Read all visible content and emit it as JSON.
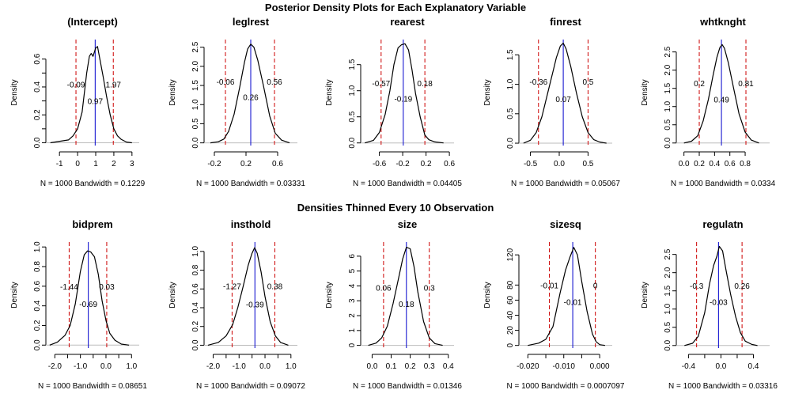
{
  "figure": {
    "top_title": "Posterior Density Plots for Each Explanatory Variable",
    "middle_title": "Densities Thinned Every 10 Observation"
  },
  "chart_data": [
    {
      "type": "line",
      "title": "(Intercept)",
      "xlabel": "N = 1000   Bandwidth = 0.1229",
      "ylabel": "Density",
      "xlim": [
        -1.75,
        3.4
      ],
      "ylim": [
        -0.02,
        0.74
      ],
      "xticks": [
        -1,
        0,
        1,
        2,
        3
      ],
      "xtick_labels": [
        "-1",
        "0",
        "1",
        "2",
        "3"
      ],
      "yticks": [
        0,
        0.1,
        0.2,
        0.3,
        0.4,
        0.5,
        0.6
      ],
      "ytick_labels": [
        "0.0",
        "",
        "0.2",
        "",
        "0.4",
        "",
        "0.6"
      ],
      "lower": -0.09,
      "median": 0.97,
      "upper": 1.97,
      "lower_label": "-0.09",
      "median_label": "0.97",
      "upper_label": "1.97",
      "label_y": [
        0.42,
        0.3
      ],
      "x": [
        -1.5,
        -0.5,
        -0.25,
        0,
        0.25,
        0.5,
        0.65,
        0.75,
        0.85,
        1.0,
        1.1,
        1.2,
        1.4,
        1.6,
        1.8,
        2.0,
        2.2,
        2.4,
        2.7,
        3.0
      ],
      "y": [
        0.0,
        0.02,
        0.05,
        0.1,
        0.22,
        0.5,
        0.62,
        0.64,
        0.62,
        0.68,
        0.69,
        0.62,
        0.48,
        0.33,
        0.2,
        0.1,
        0.05,
        0.025,
        0.005,
        0.0
      ]
    },
    {
      "type": "line",
      "title": "leglrest",
      "xlabel": "N = 1000   Bandwidth = 0.03331",
      "ylabel": "Density",
      "xlim": [
        -0.33,
        0.85
      ],
      "ylim": [
        -0.07,
        2.7
      ],
      "xticks": [
        -0.2,
        0.2,
        0.6
      ],
      "xtick_labels": [
        "-0.2",
        "0.2",
        "0.6"
      ],
      "yticks": [
        0,
        0.5,
        1,
        1.5,
        2,
        2.5
      ],
      "ytick_labels": [
        "0.0",
        "0.5",
        "1.0",
        "1.5",
        "2.0",
        "2.5"
      ],
      "lower": -0.06,
      "median": 0.26,
      "upper": 0.56,
      "lower_label": "-0.06",
      "median_label": "0.26",
      "upper_label": "0.56",
      "label_y": [
        1.6,
        1.2
      ],
      "x": [
        -0.25,
        -0.15,
        -0.08,
        -0.02,
        0.05,
        0.12,
        0.18,
        0.22,
        0.26,
        0.3,
        0.35,
        0.42,
        0.5,
        0.57,
        0.65,
        0.75
      ],
      "y": [
        0.0,
        0.03,
        0.1,
        0.3,
        0.75,
        1.45,
        2.1,
        2.45,
        2.58,
        2.5,
        2.15,
        1.5,
        0.7,
        0.25,
        0.07,
        0.0
      ]
    },
    {
      "type": "line",
      "title": "rearest",
      "xlabel": "N = 1000   Bandwidth = 0.04405",
      "ylabel": "Density",
      "xlim": [
        -0.92,
        0.68
      ],
      "ylim": [
        -0.05,
        1.98
      ],
      "xticks": [
        -0.6,
        -0.2,
        0.2,
        0.6
      ],
      "xtick_labels": [
        "-0.6",
        "-0.2",
        "0.2",
        "0.6"
      ],
      "yticks": [
        0,
        0.5,
        1,
        1.5
      ],
      "ytick_labels": [
        "0.0",
        "0.5",
        "1.0",
        "1.5"
      ],
      "lower": -0.57,
      "median": -0.19,
      "upper": 0.18,
      "lower_label": "-0.57",
      "median_label": "-0.19",
      "upper_label": "0.18",
      "label_y": [
        1.15,
        0.85
      ],
      "x": [
        -0.85,
        -0.7,
        -0.6,
        -0.5,
        -0.42,
        -0.35,
        -0.28,
        -0.22,
        -0.16,
        -0.1,
        -0.04,
        0.02,
        0.1,
        0.18,
        0.25,
        0.35,
        0.5
      ],
      "y": [
        0.0,
        0.05,
        0.2,
        0.55,
        1.0,
        1.5,
        1.82,
        1.88,
        1.9,
        1.78,
        1.4,
        0.95,
        0.5,
        0.15,
        0.06,
        0.02,
        0.0
      ]
    },
    {
      "type": "line",
      "title": "finrest",
      "xlabel": "N = 1000   Bandwidth = 0.05067",
      "ylabel": "Density",
      "xlim": [
        -0.7,
        0.92
      ],
      "ylim": [
        -0.04,
        1.76
      ],
      "xticks": [
        -0.5,
        0,
        0.5
      ],
      "xtick_labels": [
        "-0.5",
        "0.0",
        "0.5"
      ],
      "yticks": [
        0,
        0.5,
        1,
        1.5
      ],
      "ytick_labels": [
        "0.0",
        "0.5",
        "1.0",
        "1.5"
      ],
      "lower": -0.36,
      "median": 0.07,
      "upper": 0.5,
      "lower_label": "-0.36",
      "median_label": "0.07",
      "upper_label": "0.5",
      "label_y": [
        1.05,
        0.75
      ],
      "x": [
        -0.62,
        -0.5,
        -0.4,
        -0.3,
        -0.2,
        -0.1,
        -0.05,
        0.02,
        0.07,
        0.12,
        0.2,
        0.3,
        0.4,
        0.5,
        0.6,
        0.7,
        0.82
      ],
      "y": [
        0.0,
        0.05,
        0.18,
        0.45,
        0.85,
        1.25,
        1.45,
        1.65,
        1.7,
        1.6,
        1.3,
        0.85,
        0.45,
        0.18,
        0.06,
        0.02,
        0.0
      ]
    },
    {
      "type": "line",
      "title": "whtknght",
      "xlabel": "N = 1000   Bandwidth = 0.0334",
      "ylabel": "Density",
      "xlim": [
        -0.1,
        1.12
      ],
      "ylim": [
        -0.07,
        2.84
      ],
      "xticks": [
        0,
        0.2,
        0.4,
        0.6,
        0.8
      ],
      "xtick_labels": [
        "0.0",
        "0.2",
        "0.4",
        "0.6",
        "0.8"
      ],
      "yticks": [
        0,
        0.5,
        1,
        1.5,
        2,
        2.5
      ],
      "ytick_labels": [
        "0.0",
        "0.5",
        "1.0",
        "1.5",
        "2.0",
        "2.5"
      ],
      "lower": 0.2,
      "median": 0.49,
      "upper": 0.81,
      "lower_label": "0.2",
      "median_label": "0.49",
      "upper_label": "0.81",
      "label_y": [
        1.65,
        1.2
      ],
      "x": [
        0.0,
        0.1,
        0.18,
        0.25,
        0.32,
        0.38,
        0.43,
        0.47,
        0.5,
        0.53,
        0.58,
        0.65,
        0.72,
        0.8,
        0.88,
        0.98
      ],
      "y": [
        0.0,
        0.05,
        0.2,
        0.6,
        1.2,
        1.85,
        2.35,
        2.62,
        2.7,
        2.6,
        2.2,
        1.5,
        0.8,
        0.3,
        0.08,
        0.0
      ]
    },
    {
      "type": "line",
      "title": "bidprem",
      "xlabel": "N = 1000   Bandwidth = 0.08651",
      "ylabel": "Density",
      "xlim": [
        -2.35,
        1.3
      ],
      "ylim": [
        -0.03,
        1.05
      ],
      "xticks": [
        -2,
        -1.5,
        -1,
        -0.5,
        0,
        0.5,
        1
      ],
      "xtick_labels": [
        "-2.0",
        "",
        "-1.0",
        "",
        "0.0",
        "",
        "1.0"
      ],
      "yticks": [
        0,
        0.2,
        0.4,
        0.6,
        0.8,
        1.0
      ],
      "ytick_labels": [
        "0.0",
        "0.2",
        "0.4",
        "0.6",
        "0.8",
        "1.0"
      ],
      "lower": -1.44,
      "median": -0.69,
      "upper": 0.03,
      "lower_label": "-1.44",
      "median_label": "-0.69",
      "upper_label": "0.03",
      "label_y": [
        0.6,
        0.42
      ],
      "x": [
        -2.2,
        -1.9,
        -1.6,
        -1.4,
        -1.2,
        -1.0,
        -0.85,
        -0.72,
        -0.6,
        -0.45,
        -0.3,
        -0.15,
        0.0,
        0.15,
        0.35,
        0.6,
        0.9
      ],
      "y": [
        0.0,
        0.03,
        0.1,
        0.2,
        0.42,
        0.75,
        0.92,
        0.96,
        0.95,
        0.9,
        0.72,
        0.45,
        0.25,
        0.12,
        0.05,
        0.01,
        0.0
      ]
    },
    {
      "type": "line",
      "title": "insthold",
      "xlabel": "N = 1000   Bandwidth = 0.09072",
      "ylabel": "Density",
      "xlim": [
        -2.35,
        1.25
      ],
      "ylim": [
        -0.03,
        1.1
      ],
      "xticks": [
        -2,
        -1.5,
        -1,
        -0.5,
        0,
        0.5,
        1
      ],
      "xtick_labels": [
        "-2.0",
        "",
        "-1.0",
        "",
        "0.0",
        "",
        "1.0"
      ],
      "yticks": [
        0,
        0.2,
        0.4,
        0.6,
        0.8,
        1.0
      ],
      "ytick_labels": [
        "0.0",
        "0.2",
        "0.4",
        "0.6",
        "0.8",
        "1.0"
      ],
      "lower": -1.27,
      "median": -0.39,
      "upper": 0.38,
      "lower_label": "-1.27",
      "median_label": "-0.39",
      "upper_label": "0.38",
      "label_y": [
        0.63,
        0.44
      ],
      "x": [
        -2.2,
        -1.8,
        -1.5,
        -1.25,
        -1.05,
        -0.85,
        -0.65,
        -0.5,
        -0.4,
        -0.3,
        -0.15,
        0.0,
        0.2,
        0.4,
        0.6,
        0.9
      ],
      "y": [
        0.0,
        0.03,
        0.1,
        0.22,
        0.4,
        0.62,
        0.85,
        0.98,
        1.04,
        0.98,
        0.78,
        0.52,
        0.25,
        0.1,
        0.03,
        0.0
      ]
    },
    {
      "type": "line",
      "title": "size",
      "xlabel": "N = 1000   Bandwidth = 0.01346",
      "ylabel": "Density",
      "xlim": [
        -0.06,
        0.43
      ],
      "ylim": [
        -0.18,
        6.95
      ],
      "xticks": [
        0,
        0.1,
        0.2,
        0.3,
        0.4
      ],
      "xtick_labels": [
        "0.0",
        "0.1",
        "0.2",
        "0.3",
        "0.4"
      ],
      "yticks": [
        0,
        1,
        2,
        3,
        4,
        5,
        6
      ],
      "ytick_labels": [
        "0",
        "1",
        "2",
        "3",
        "4",
        "5",
        "6"
      ],
      "lower": 0.06,
      "median": 0.18,
      "upper": 0.3,
      "lower_label": "0.06",
      "median_label": "0.18",
      "upper_label": "0.3",
      "label_y": [
        3.9,
        2.8
      ],
      "x": [
        -0.02,
        0.02,
        0.05,
        0.08,
        0.11,
        0.14,
        0.16,
        0.18,
        0.2,
        0.22,
        0.24,
        0.27,
        0.3,
        0.33,
        0.37
      ],
      "y": [
        0.0,
        0.15,
        0.5,
        1.3,
        2.8,
        4.6,
        5.8,
        6.6,
        6.5,
        5.3,
        3.6,
        1.6,
        0.5,
        0.12,
        0.0
      ]
    },
    {
      "type": "line",
      "title": "sizesq",
      "xlabel": "N = 1000   Bandwidth = 0.0007097",
      "ylabel": "Density",
      "xlim": [
        -0.0225,
        0.0035
      ],
      "ylim": [
        -3.5,
        137
      ],
      "xticks": [
        -0.02,
        -0.015,
        -0.01,
        -0.005,
        0
      ],
      "xtick_labels": [
        "-0.020",
        "",
        "-0.010",
        "",
        "0.000"
      ],
      "yticks": [
        0,
        20,
        40,
        60,
        80,
        120
      ],
      "ytick_labels": [
        "0",
        "20",
        "40",
        "60",
        "80",
        "120"
      ],
      "lower": -0.014,
      "median": -0.0075,
      "upper": -0.0012,
      "lower_label": "-0.01",
      "median_label": "-0.01",
      "upper_label": "0",
      "label_y": [
        80,
        58
      ],
      "x": [
        -0.02,
        -0.017,
        -0.015,
        -0.013,
        -0.011,
        -0.0095,
        -0.0082,
        -0.0072,
        -0.0062,
        -0.005,
        -0.0035,
        -0.002,
        -0.001,
        0.0,
        0.0015
      ],
      "y": [
        0,
        3,
        8,
        25,
        70,
        100,
        118,
        130,
        120,
        85,
        45,
        15,
        5,
        1,
        0
      ]
    },
    {
      "type": "line",
      "title": "regulatn",
      "xlabel": "N = 1000   Bandwidth = 0.03316",
      "ylabel": "Density",
      "xlim": [
        -0.55,
        0.6
      ],
      "ylim": [
        -0.07,
        2.84
      ],
      "xticks": [
        -0.4,
        -0.2,
        0,
        0.2,
        0.4
      ],
      "xtick_labels": [
        "-0.4",
        "",
        "0.0",
        "",
        "0.4"
      ],
      "yticks": [
        0,
        0.5,
        1,
        1.5,
        2,
        2.5
      ],
      "ytick_labels": [
        "0.0",
        "0.5",
        "1.0",
        "1.5",
        "2.0",
        "2.5"
      ],
      "lower": -0.3,
      "median": -0.03,
      "upper": 0.26,
      "lower_label": "-0.3",
      "median_label": "-0.03",
      "upper_label": "0.26",
      "label_y": [
        1.65,
        1.2
      ],
      "x": [
        -0.45,
        -0.35,
        -0.28,
        -0.2,
        -0.14,
        -0.09,
        -0.05,
        -0.02,
        0.02,
        0.06,
        0.12,
        0.18,
        0.24,
        0.3,
        0.38,
        0.45
      ],
      "y": [
        0.0,
        0.06,
        0.25,
        0.9,
        1.7,
        2.2,
        2.45,
        2.72,
        2.6,
        2.1,
        1.4,
        0.8,
        0.35,
        0.12,
        0.03,
        0.0
      ]
    }
  ]
}
